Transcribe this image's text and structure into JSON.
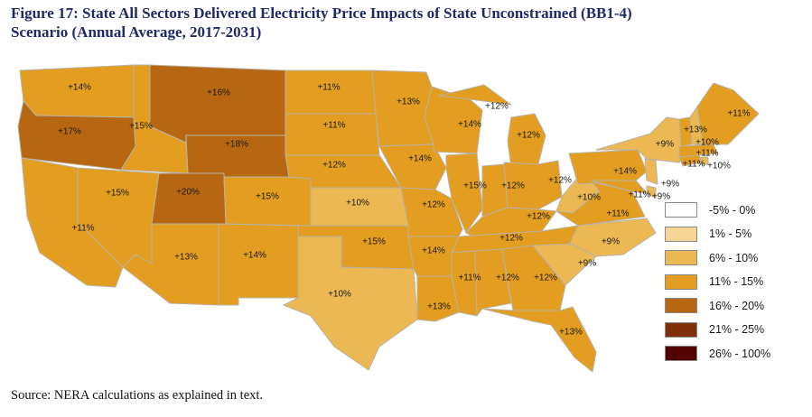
{
  "figure": {
    "title_line1": "Figure 17:  State All Sectors Delivered Electricity Price Impacts of State Unconstrained (BB1-4)",
    "title_line2": "Scenario (Annual Average, 2017-2031)",
    "source": "Source:  NERA calculations as explained in text."
  },
  "legend": [
    {
      "label": "-5% - 0%",
      "color": "#ffffff"
    },
    {
      "label": "1% - 5%",
      "color": "#f6d594"
    },
    {
      "label": "6% - 10%",
      "color": "#ebb854"
    },
    {
      "label": "11% - 15%",
      "color": "#e39d20"
    },
    {
      "label": "16% - 20%",
      "color": "#b76712"
    },
    {
      "label": "21% - 25%",
      "color": "#7f3008"
    },
    {
      "label": "26% - 100%",
      "color": "#530000"
    }
  ],
  "states": [
    {
      "id": "WA",
      "value": "+14%",
      "bin": 3
    },
    {
      "id": "OR",
      "value": "+17%",
      "bin": 4
    },
    {
      "id": "CA",
      "value": "+11%",
      "bin": 3
    },
    {
      "id": "ID",
      "value": "+15%",
      "bin": 3
    },
    {
      "id": "NV",
      "value": "+15%",
      "bin": 3
    },
    {
      "id": "MT",
      "value": "+16%",
      "bin": 4
    },
    {
      "id": "WY",
      "value": "+18%",
      "bin": 4
    },
    {
      "id": "UT",
      "value": "+20%",
      "bin": 4
    },
    {
      "id": "CO",
      "value": "+15%",
      "bin": 3
    },
    {
      "id": "AZ",
      "value": "+13%",
      "bin": 3
    },
    {
      "id": "NM",
      "value": "+14%",
      "bin": 3
    },
    {
      "id": "ND",
      "value": "+11%",
      "bin": 3
    },
    {
      "id": "SD",
      "value": "+11%",
      "bin": 3
    },
    {
      "id": "NE",
      "value": "+12%",
      "bin": 3
    },
    {
      "id": "KS",
      "value": "+10%",
      "bin": 2
    },
    {
      "id": "OK",
      "value": "+15%",
      "bin": 3
    },
    {
      "id": "TX",
      "value": "+10%",
      "bin": 2
    },
    {
      "id": "MN",
      "value": "+13%",
      "bin": 3
    },
    {
      "id": "IA",
      "value": "+14%",
      "bin": 3
    },
    {
      "id": "MO",
      "value": "+12%",
      "bin": 3
    },
    {
      "id": "AR",
      "value": "+14%",
      "bin": 3
    },
    {
      "id": "LA",
      "value": "+13%",
      "bin": 3
    },
    {
      "id": "WI",
      "value": "+14%",
      "bin": 3
    },
    {
      "id": "UP",
      "value": "+12%",
      "bin": 3
    },
    {
      "id": "MI",
      "value": "+12%",
      "bin": 3
    },
    {
      "id": "IL",
      "value": "+15%",
      "bin": 3
    },
    {
      "id": "IN",
      "value": "+12%",
      "bin": 3
    },
    {
      "id": "OH",
      "value": "+12%",
      "bin": 3
    },
    {
      "id": "KY",
      "value": "+12%",
      "bin": 3
    },
    {
      "id": "TN",
      "value": "+12%",
      "bin": 3
    },
    {
      "id": "MS",
      "value": "+11%",
      "bin": 3
    },
    {
      "id": "AL",
      "value": "+12%",
      "bin": 3
    },
    {
      "id": "GA",
      "value": "+12%",
      "bin": 3
    },
    {
      "id": "FL",
      "value": "+13%",
      "bin": 3
    },
    {
      "id": "SC",
      "value": "+9%",
      "bin": 2
    },
    {
      "id": "NC",
      "value": "+9%",
      "bin": 2
    },
    {
      "id": "VA",
      "value": "+11%",
      "bin": 3
    },
    {
      "id": "WV",
      "value": "+10%",
      "bin": 2
    },
    {
      "id": "PA",
      "value": "+14%",
      "bin": 3
    },
    {
      "id": "NY",
      "value": "+9%",
      "bin": 2
    },
    {
      "id": "MD",
      "value": "+11%",
      "bin": 3
    },
    {
      "id": "DE",
      "value": "+9%",
      "bin": 2
    },
    {
      "id": "NJ",
      "value": "+9%",
      "bin": 2
    },
    {
      "id": "CT",
      "value": "+11%",
      "bin": 3
    },
    {
      "id": "RI",
      "value": "+10%",
      "bin": 2
    },
    {
      "id": "MA",
      "value": "+11%",
      "bin": 3
    },
    {
      "id": "VT",
      "value": "+13%",
      "bin": 3
    },
    {
      "id": "NH",
      "value": "+10%",
      "bin": 2
    },
    {
      "id": "ME",
      "value": "+11%",
      "bin": 3
    }
  ]
}
